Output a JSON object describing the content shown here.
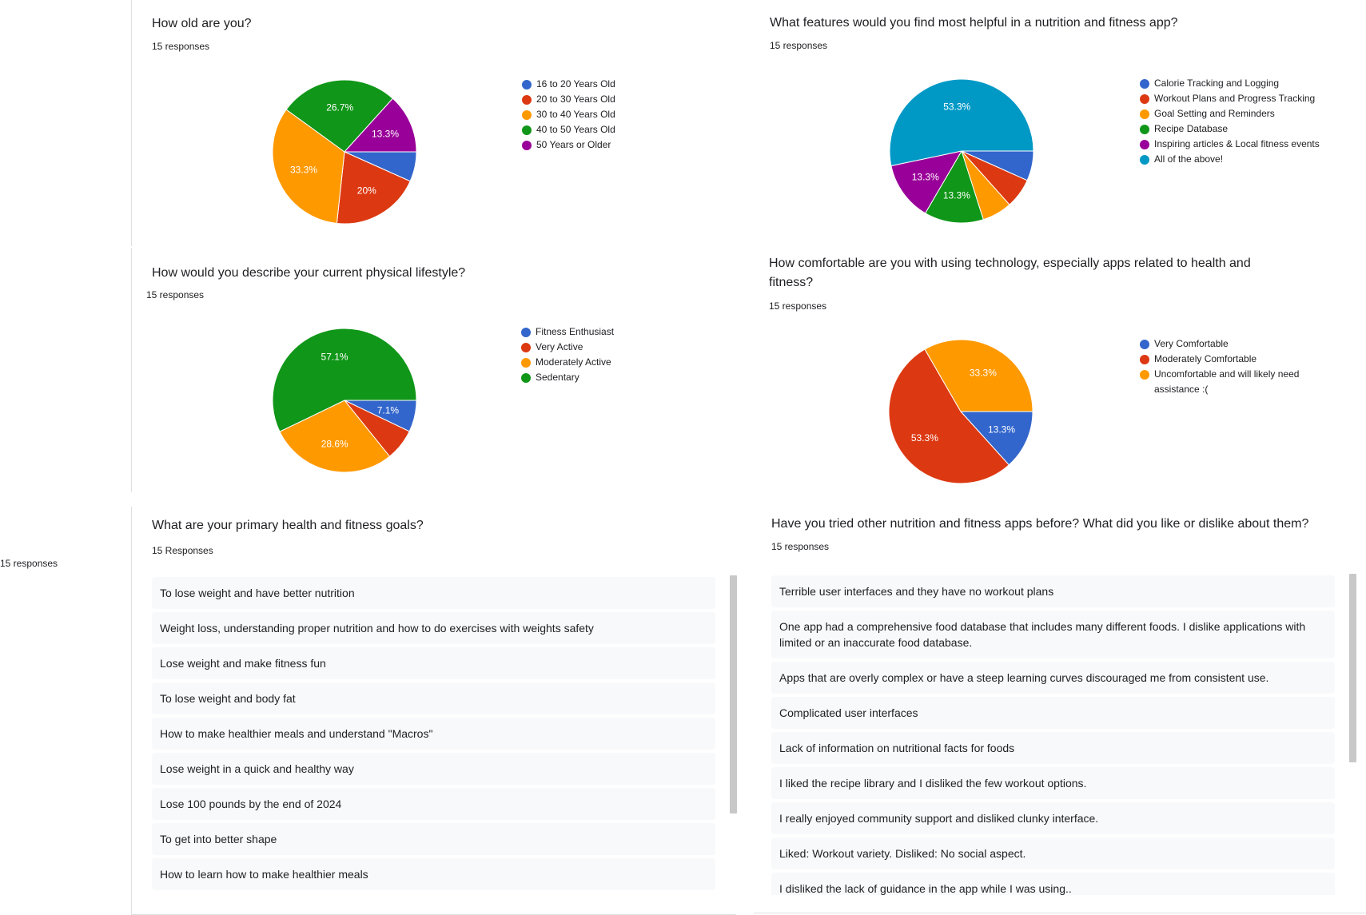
{
  "stray_label": "15 responses",
  "cards": {
    "age": {
      "title": "How old are you?",
      "responses": "15 responses",
      "chart_data": {
        "type": "pie",
        "labels": [
          "16 to 20 Years Old",
          "20 to 30 Years Old",
          "30 to 40 Years Old",
          "40 to 50 Years Old",
          "50 Years or Older"
        ],
        "values": [
          6.7,
          20,
          33.3,
          26.7,
          13.3
        ],
        "display": [
          "",
          "20%",
          "33.3%",
          "26.7%",
          "13.3%"
        ],
        "colors": [
          "#3366cc",
          "#dc3912",
          "#ff9900",
          "#109618",
          "#990099"
        ]
      }
    },
    "features": {
      "title": "What features would you find most helpful in a nutrition and fitness app?",
      "responses": "15 responses",
      "chart_data": {
        "type": "pie",
        "labels": [
          "Calorie Tracking and Logging",
          "Workout Plans and Progress Tracking",
          "Goal Setting and Reminders",
          "Recipe Database",
          "Inspiring articles & Local fitness events",
          "All of the above!"
        ],
        "values": [
          6.7,
          6.7,
          6.7,
          13.3,
          13.3,
          53.3
        ],
        "display": [
          "",
          "",
          "",
          "13.3%",
          "13.3%",
          "53.3%"
        ],
        "colors": [
          "#3366cc",
          "#dc3912",
          "#ff9900",
          "#109618",
          "#990099",
          "#0099c6"
        ]
      }
    },
    "lifestyle": {
      "title": "How would you describe your current physical lifestyle?",
      "responses": "15 responses",
      "chart_data": {
        "type": "pie",
        "labels": [
          "Fitness Enthusiast",
          "Very Active",
          "Moderately Active",
          "Sedentary"
        ],
        "values": [
          7.1,
          7.1,
          28.6,
          57.1
        ],
        "display": [
          "7.1%",
          "",
          "28.6%",
          "57.1%"
        ],
        "colors": [
          "#3366cc",
          "#dc3912",
          "#ff9900",
          "#109618"
        ]
      }
    },
    "tech": {
      "title": "How comfortable are you with using technology, especially apps related to health and fitness?",
      "responses": "15 responses",
      "chart_data": {
        "type": "pie",
        "labels": [
          "Very Comfortable",
          "Moderately Comfortable",
          "Uncomfortable and will likely need assistance :("
        ],
        "values": [
          13.3,
          53.3,
          33.3
        ],
        "display": [
          "13.3%",
          "53.3%",
          "33.3%"
        ],
        "colors": [
          "#3366cc",
          "#dc3912",
          "#ff9900"
        ]
      }
    },
    "goals": {
      "title": "What are your primary health and fitness goals?",
      "responses": "15 Responses",
      "items": [
        "To lose weight and have better nutrition",
        "Weight loss, understanding proper nutrition and how to do exercises with weights safety",
        "Lose weight and make fitness fun",
        "To lose weight and body fat",
        "How to make healthier meals and understand \"Macros\"",
        "Lose weight in a quick and healthy way",
        "Lose 100 pounds by the end of 2024",
        "To get into better shape",
        "How to learn how to make healthier meals"
      ]
    },
    "other_apps": {
      "title": "Have you tried other nutrition and fitness apps before? What did you like or dislike about them?",
      "responses": "15 responses",
      "items": [
        "Terrible user interfaces and they have no workout plans",
        "One app had a comprehensive food database that includes many different foods. I dislike applications with limited or an inaccurate food database.",
        "Apps that are overly complex or have a steep learning curves discouraged me from consistent use.",
        "Complicated user interfaces",
        "Lack of information on nutritional facts for foods",
        "I liked the recipe library and I disliked the few workout options.",
        "I really enjoyed community support and disliked clunky interface.",
        "Liked: Workout variety. Disliked: No social aspect.",
        "I disliked the lack of guidance in the app while I was using.."
      ]
    }
  }
}
